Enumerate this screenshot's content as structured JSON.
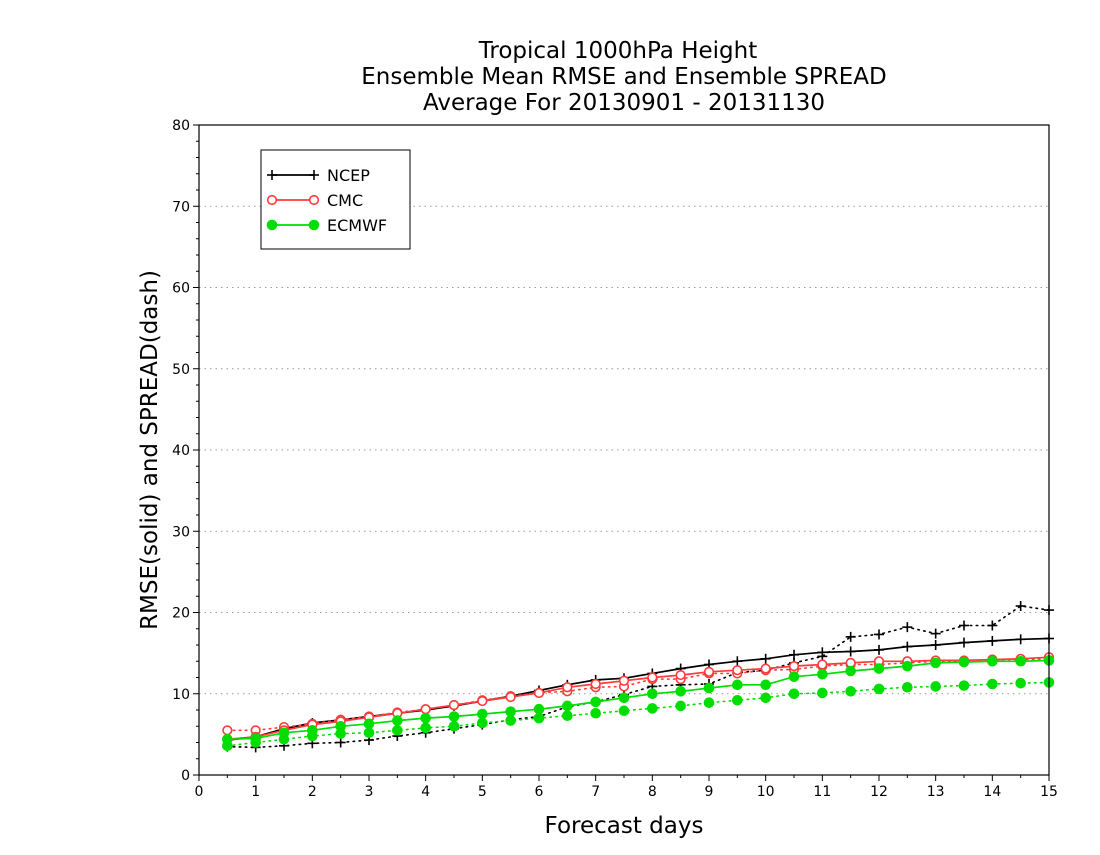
{
  "chart_data": {
    "type": "line",
    "title_lines": [
      "Tropical 1000hPa Height",
      "Ensemble Mean RMSE and Ensemble SPREAD",
      "Average For 20130901 - 20131130"
    ],
    "xlabel": "Forecast days",
    "ylabel": "RMSE(solid) and SPREAD(dash)",
    "xlim": [
      0,
      15
    ],
    "ylim": [
      0,
      80
    ],
    "x_ticks": [
      "0",
      "1",
      "2",
      "3",
      "4",
      "5",
      "6",
      "7",
      "8",
      "9",
      "10",
      "11",
      "12",
      "13",
      "14",
      "15"
    ],
    "y_ticks": [
      "0",
      "10",
      "20",
      "30",
      "40",
      "50",
      "60",
      "70",
      "80"
    ],
    "grid": "horizontal dotted",
    "legend_position": "top-left",
    "x": [
      0.5,
      1,
      1.5,
      2,
      2.5,
      3,
      3.5,
      4,
      4.5,
      5,
      5.5,
      6,
      6.5,
      7,
      7.5,
      8,
      8.5,
      9,
      9.5,
      10,
      10.5,
      11,
      11.5,
      12,
      12.5,
      13,
      13.5,
      14,
      14.5,
      15
    ],
    "series": [
      {
        "name": "NCEP",
        "color": "#000000",
        "marker": "plus",
        "rmse": [
          4.3,
          4.7,
          5.7,
          6.4,
          6.8,
          7.2,
          7.6,
          8.0,
          8.5,
          9.1,
          9.7,
          10.4,
          11.1,
          11.7,
          11.9,
          12.5,
          13.1,
          13.6,
          14.0,
          14.3,
          14.8,
          15.1,
          15.2,
          15.4,
          15.8,
          16.0,
          16.3,
          16.5,
          16.7,
          16.8
        ],
        "spread": [
          3.5,
          3.4,
          3.6,
          3.9,
          4.0,
          4.3,
          4.8,
          5.2,
          5.7,
          6.2,
          6.8,
          7.2,
          8.4,
          9.0,
          9.9,
          10.9,
          11.1,
          11.2,
          12.6,
          12.9,
          13.8,
          14.6,
          17.0,
          17.3,
          18.2,
          17.4,
          18.4,
          18.4,
          20.8,
          20.3
        ]
      },
      {
        "name": "CMC",
        "color": "#ff3b3b",
        "marker": "open-circle",
        "rmse": [
          4.4,
          4.7,
          5.5,
          6.2,
          6.6,
          7.1,
          7.6,
          8.1,
          8.6,
          9.1,
          9.6,
          10.1,
          10.8,
          11.2,
          11.6,
          12.0,
          12.3,
          12.7,
          12.9,
          13.1,
          13.4,
          13.6,
          13.8,
          14.0,
          14.0,
          14.1,
          14.1,
          14.2,
          14.3,
          14.5
        ],
        "spread": [
          5.5,
          5.5,
          5.9,
          6.3,
          6.8,
          7.2,
          7.7,
          8.1,
          8.6,
          9.2,
          9.7,
          10.1,
          10.3,
          10.8,
          10.9,
          11.8,
          11.8,
          12.5,
          12.5,
          12.9,
          13.0,
          13.4,
          13.6,
          13.6,
          13.8,
          14.0,
          14.0,
          14.2,
          14.2,
          14.3
        ]
      },
      {
        "name": "ECMWF",
        "color": "#00dd00",
        "marker": "filled-circle",
        "rmse": [
          4.4,
          4.5,
          5.2,
          5.5,
          6.0,
          6.3,
          6.7,
          7.0,
          7.2,
          7.5,
          7.8,
          8.1,
          8.5,
          9.0,
          9.5,
          10.0,
          10.3,
          10.7,
          11.1,
          11.1,
          12.1,
          12.4,
          12.8,
          13.1,
          13.4,
          13.8,
          13.9,
          14.0,
          14.0,
          14.1
        ],
        "spread": [
          3.6,
          4.0,
          4.4,
          4.8,
          5.1,
          5.2,
          5.5,
          5.8,
          6.0,
          6.4,
          6.7,
          7.0,
          7.3,
          7.6,
          7.9,
          8.2,
          8.5,
          8.9,
          9.2,
          9.5,
          10.0,
          10.1,
          10.3,
          10.6,
          10.8,
          10.9,
          11.0,
          11.2,
          11.3,
          11.4
        ]
      }
    ]
  }
}
